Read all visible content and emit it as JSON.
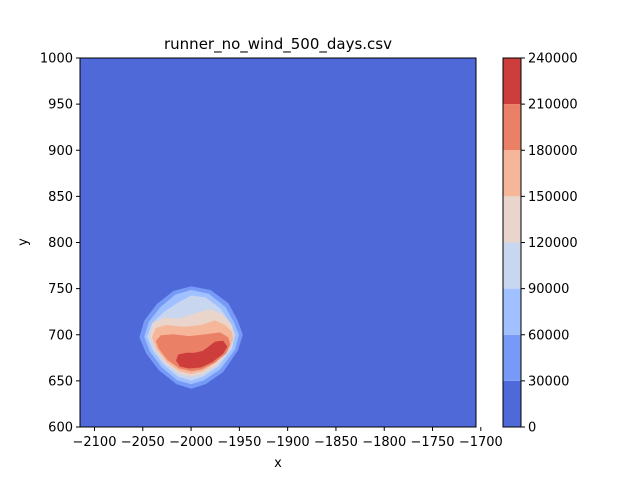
{
  "chart_data": {
    "type": "heatmap",
    "subtype": "filled-contour",
    "title": "runner_no_wind_500_days.csv",
    "xlabel": "x",
    "ylabel": "y",
    "xlim": [
      -2115,
      -1705
    ],
    "ylim": [
      600,
      1000
    ],
    "xticks": [
      -2100,
      -2050,
      -2000,
      -1950,
      -1900,
      -1850,
      -1800,
      -1750,
      -1700
    ],
    "xtick_labels": [
      "−2100",
      "−2050",
      "−2000",
      "−1950",
      "−1900",
      "−1850",
      "−1800",
      "−1750",
      "−1700"
    ],
    "yticks": [
      600,
      650,
      700,
      750,
      800,
      850,
      900,
      950,
      1000
    ],
    "ytick_labels": [
      "600",
      "650",
      "700",
      "750",
      "800",
      "850",
      "900",
      "950",
      "1000"
    ],
    "colorbar": {
      "levels": [
        0,
        30000,
        60000,
        90000,
        120000,
        150000,
        180000,
        210000,
        240000
      ],
      "tick_labels": [
        "0",
        "30000",
        "60000",
        "90000",
        "120000",
        "150000",
        "180000",
        "210000",
        "240000"
      ],
      "colors": [
        "#4f69d9",
        "#779af7",
        "#a1c0ff",
        "#c8d7ef",
        "#e9d5cb",
        "#f6b69a",
        "#ea8167",
        "#cc3d3b"
      ]
    },
    "background_color": "#4f69d9",
    "contours": [
      {
        "level_min": 30000,
        "level_max": 60000,
        "color": "#779af7",
        "points": [
          [
            -2000,
            752
          ],
          [
            -1980,
            748
          ],
          [
            -1962,
            734
          ],
          [
            -1952,
            715
          ],
          [
            -1947,
            700
          ],
          [
            -1952,
            683
          ],
          [
            -1967,
            660
          ],
          [
            -1985,
            647
          ],
          [
            -2000,
            642
          ],
          [
            -2015,
            647
          ],
          [
            -2033,
            662
          ],
          [
            -2046,
            680
          ],
          [
            -2053,
            697
          ],
          [
            -2048,
            715
          ],
          [
            -2035,
            733
          ],
          [
            -2018,
            747
          ]
        ]
      },
      {
        "level_min": 60000,
        "level_max": 90000,
        "color": "#a1c0ff",
        "points": [
          [
            -2000,
            748
          ],
          [
            -1982,
            744
          ],
          [
            -1965,
            730
          ],
          [
            -1956,
            713
          ],
          [
            -1951,
            700
          ],
          [
            -1955,
            684
          ],
          [
            -1970,
            663
          ],
          [
            -1987,
            651
          ],
          [
            -2000,
            647
          ],
          [
            -2014,
            651
          ],
          [
            -2030,
            665
          ],
          [
            -2042,
            682
          ],
          [
            -2048,
            698
          ],
          [
            -2043,
            714
          ],
          [
            -2031,
            730
          ],
          [
            -2016,
            743
          ]
        ]
      },
      {
        "level_min": 90000,
        "level_max": 120000,
        "color": "#c8d7ef",
        "points": [
          [
            -2000,
            742
          ],
          [
            -1985,
            740
          ],
          [
            -1970,
            728
          ],
          [
            -1960,
            713
          ],
          [
            -1955,
            700
          ],
          [
            -1958,
            685
          ],
          [
            -1972,
            666
          ],
          [
            -1988,
            655
          ],
          [
            -2000,
            651
          ],
          [
            -2013,
            655
          ],
          [
            -2028,
            668
          ],
          [
            -2039,
            683
          ],
          [
            -2045,
            698
          ],
          [
            -2040,
            712
          ],
          [
            -2028,
            724
          ],
          [
            -2014,
            734
          ]
        ]
      },
      {
        "level_min": 120000,
        "level_max": 150000,
        "color": "#e9d5cb",
        "points": [
          [
            -1995,
            723
          ],
          [
            -1980,
            727
          ],
          [
            -1967,
            721
          ],
          [
            -1958,
            710
          ],
          [
            -1956,
            700
          ],
          [
            -1960,
            686
          ],
          [
            -1973,
            668
          ],
          [
            -1988,
            658
          ],
          [
            -2000,
            655
          ],
          [
            -2012,
            658
          ],
          [
            -2027,
            670
          ],
          [
            -2037,
            685
          ],
          [
            -2042,
            699
          ],
          [
            -2039,
            712
          ],
          [
            -2028,
            718
          ],
          [
            -2012,
            717
          ]
        ]
      },
      {
        "level_min": 150000,
        "level_max": 180000,
        "color": "#f6b69a",
        "points": [
          [
            -1990,
            710
          ],
          [
            -1975,
            715
          ],
          [
            -1965,
            710
          ],
          [
            -1958,
            703
          ],
          [
            -1957,
            695
          ],
          [
            -1962,
            683
          ],
          [
            -1975,
            670
          ],
          [
            -1988,
            661
          ],
          [
            -2000,
            658
          ],
          [
            -2012,
            661
          ],
          [
            -2025,
            671
          ],
          [
            -2035,
            684
          ],
          [
            -2040,
            697
          ],
          [
            -2036,
            707
          ],
          [
            -2025,
            710
          ],
          [
            -2008,
            708
          ]
        ]
      },
      {
        "level_min": 180000,
        "level_max": 210000,
        "color": "#ea8167",
        "points": [
          [
            -1985,
            700
          ],
          [
            -1970,
            702
          ],
          [
            -1962,
            697
          ],
          [
            -1960,
            690
          ],
          [
            -1964,
            680
          ],
          [
            -1976,
            670
          ],
          [
            -1989,
            663
          ],
          [
            -2000,
            661
          ],
          [
            -2012,
            664
          ],
          [
            -2024,
            673
          ],
          [
            -2033,
            685
          ],
          [
            -2036,
            693
          ],
          [
            -2031,
            699
          ],
          [
            -2018,
            700
          ],
          [
            -2002,
            698
          ]
        ]
      },
      {
        "level_min": 210000,
        "level_max": 240000,
        "color": "#cc3d3b",
        "points": [
          [
            -1975,
            692
          ],
          [
            -1967,
            693
          ],
          [
            -1963,
            687
          ],
          [
            -1967,
            680
          ],
          [
            -1978,
            671
          ],
          [
            -1990,
            665
          ],
          [
            -2002,
            664
          ],
          [
            -2011,
            666
          ],
          [
            -2015,
            672
          ],
          [
            -2013,
            678
          ],
          [
            -2005,
            680
          ],
          [
            -1996,
            680
          ],
          [
            -1988,
            682
          ],
          [
            -1981,
            687
          ]
        ]
      }
    ]
  }
}
